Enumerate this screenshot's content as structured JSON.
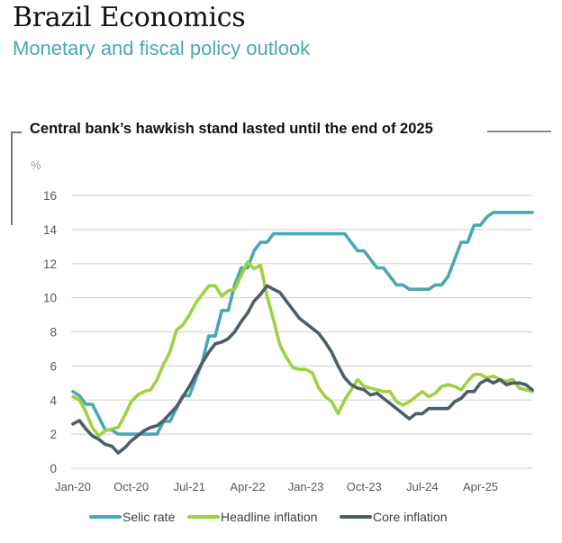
{
  "header": {
    "title": "Brazil Economics",
    "subtitle": "Monetary and fiscal policy outlook"
  },
  "colors": {
    "selic": "#4aa9b0",
    "headline": "#9fd141",
    "core": "#4d5e68",
    "grid": "#d9d9d9",
    "subtitle": "#4aa9b0"
  },
  "chart_data": {
    "type": "line",
    "title": "Central bank’s hawkish stand lasted until the end of 2025",
    "ylabel": "%",
    "xlabel": "",
    "ylim": [
      0,
      16
    ],
    "yticks": [
      "0",
      "2",
      "4",
      "6",
      "8",
      "10",
      "12",
      "14",
      "16"
    ],
    "xtick_labels": [
      "Jan-20",
      "Oct-20",
      "Jul-21",
      "Apr-22",
      "Jan-23",
      "Oct-23",
      "Jul-24",
      "Apr-25"
    ],
    "xtick_index": [
      0,
      9,
      18,
      27,
      36,
      45,
      54,
      63
    ],
    "grid": true,
    "legend_position": "bottom",
    "x_start": "Jan-20",
    "x_end": "Dec-25",
    "frequency": "monthly",
    "series": [
      {
        "name": "Selic rate",
        "key": "selic",
        "values": [
          4.5,
          4.25,
          3.75,
          3.75,
          3.0,
          2.25,
          2.25,
          2.0,
          2.0,
          2.0,
          2.0,
          2.0,
          2.0,
          2.0,
          2.75,
          2.75,
          3.5,
          4.25,
          4.25,
          5.25,
          6.25,
          7.75,
          7.75,
          9.25,
          9.25,
          10.75,
          11.75,
          11.75,
          12.75,
          13.25,
          13.25,
          13.75,
          13.75,
          13.75,
          13.75,
          13.75,
          13.75,
          13.75,
          13.75,
          13.75,
          13.75,
          13.75,
          13.75,
          13.25,
          12.75,
          12.75,
          12.25,
          11.75,
          11.75,
          11.25,
          10.75,
          10.75,
          10.5,
          10.5,
          10.5,
          10.5,
          10.75,
          10.75,
          11.25,
          12.25,
          13.25,
          13.25,
          14.25,
          14.25,
          14.75,
          15.0,
          15.0,
          15.0,
          15.0,
          15.0,
          15.0,
          15.0
        ]
      },
      {
        "name": "Headline inflation",
        "key": "headline",
        "values": [
          4.2,
          4.0,
          3.3,
          2.4,
          1.9,
          2.2,
          2.3,
          2.4,
          3.1,
          3.9,
          4.3,
          4.5,
          4.6,
          5.2,
          6.1,
          6.8,
          8.1,
          8.4,
          9.0,
          9.7,
          10.2,
          10.7,
          10.7,
          10.1,
          10.4,
          10.5,
          11.3,
          12.1,
          11.7,
          11.9,
          10.1,
          8.7,
          7.2,
          6.5,
          5.9,
          5.8,
          5.8,
          5.6,
          4.7,
          4.2,
          3.9,
          3.2,
          4.0,
          4.6,
          5.2,
          4.8,
          4.7,
          4.6,
          4.5,
          4.5,
          3.9,
          3.7,
          3.9,
          4.2,
          4.5,
          4.2,
          4.4,
          4.8,
          4.9,
          4.8,
          4.6,
          5.1,
          5.5,
          5.5,
          5.3,
          5.4,
          5.2,
          5.1,
          5.2,
          4.7,
          4.6,
          4.5
        ]
      },
      {
        "name": "Core inflation",
        "key": "core",
        "values": [
          2.6,
          2.8,
          2.3,
          1.9,
          1.7,
          1.4,
          1.3,
          0.9,
          1.2,
          1.6,
          1.9,
          2.2,
          2.4,
          2.5,
          2.8,
          3.2,
          3.6,
          4.2,
          4.8,
          5.5,
          6.2,
          6.8,
          7.3,
          7.4,
          7.6,
          8.0,
          8.6,
          9.1,
          9.8,
          10.2,
          10.7,
          10.5,
          10.3,
          9.8,
          9.3,
          8.8,
          8.5,
          8.2,
          7.9,
          7.4,
          6.8,
          6.0,
          5.3,
          4.9,
          4.7,
          4.6,
          4.3,
          4.4,
          4.1,
          3.8,
          3.5,
          3.2,
          2.9,
          3.2,
          3.2,
          3.5,
          3.5,
          3.5,
          3.5,
          3.9,
          4.1,
          4.5,
          4.5,
          5.0,
          5.2,
          5.0,
          5.2,
          4.9,
          5.0,
          5.0,
          4.9,
          4.6
        ]
      }
    ]
  },
  "legend": {
    "items": [
      {
        "label": "Selic rate",
        "key": "selic"
      },
      {
        "label": "Headline inflation",
        "key": "headline"
      },
      {
        "label": "Core inflation",
        "key": "core"
      }
    ]
  }
}
